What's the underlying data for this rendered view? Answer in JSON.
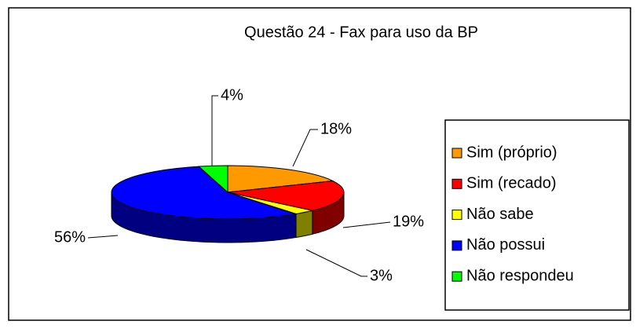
{
  "chart_data": {
    "type": "pie",
    "title": "Questão 24 - Fax para uso da BP",
    "categories": [
      "Sim (próprio)",
      "Sim (recado)",
      "Não sabe",
      "Não possui",
      "Não respondeu"
    ],
    "values": [
      18,
      19,
      3,
      56,
      4
    ],
    "value_labels": [
      "18%",
      "19%",
      "3%",
      "56%",
      "4%"
    ],
    "colors": [
      "#ff9900",
      "#ff0000",
      "#ffff00",
      "#0000ff",
      "#00ff00"
    ],
    "legend": "right"
  }
}
